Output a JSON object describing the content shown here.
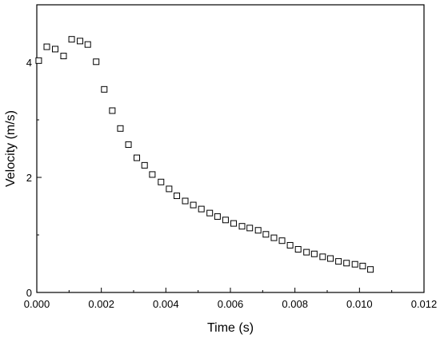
{
  "chart_data": {
    "type": "scatter",
    "title": "",
    "xlabel": "Time (s)",
    "ylabel": "Velocity (m/s)",
    "xlim": [
      0,
      0.012
    ],
    "ylim": [
      0,
      5
    ],
    "grid": false,
    "legend": "none",
    "marker": "open-square",
    "x_ticks": [
      0,
      0.002,
      0.004,
      0.006,
      0.008,
      0.01,
      0.012
    ],
    "x_tick_labels": [
      "0.000",
      "0.002",
      "0.004",
      "0.006",
      "0.008",
      "0.010",
      "0.012"
    ],
    "y_ticks": [
      0,
      2,
      4
    ],
    "y_tick_labels": [
      "0",
      "2",
      "4"
    ],
    "series": [
      {
        "x": [
          6e-05,
          0.00031,
          0.00057,
          0.00083,
          0.00108,
          0.00134,
          0.00158,
          0.00184,
          0.00209,
          0.00234,
          0.00259,
          0.00284,
          0.0031,
          0.00334,
          0.00358,
          0.00385,
          0.0041,
          0.00434,
          0.0046,
          0.00485,
          0.0051,
          0.00536,
          0.0056,
          0.00585,
          0.0061,
          0.00636,
          0.0066,
          0.00686,
          0.0071,
          0.00735,
          0.0076,
          0.00785,
          0.0081,
          0.00836,
          0.0086,
          0.00886,
          0.0091,
          0.00935,
          0.0096,
          0.00986,
          0.0101,
          0.01034
        ],
        "y": [
          4.03,
          4.27,
          4.23,
          4.11,
          4.4,
          4.37,
          4.31,
          4.01,
          3.53,
          3.16,
          2.85,
          2.57,
          2.34,
          2.21,
          2.05,
          1.92,
          1.8,
          1.68,
          1.59,
          1.52,
          1.45,
          1.38,
          1.32,
          1.26,
          1.2,
          1.15,
          1.12,
          1.08,
          1.01,
          0.95,
          0.9,
          0.82,
          0.75,
          0.7,
          0.67,
          0.62,
          0.59,
          0.54,
          0.51,
          0.49,
          0.46,
          0.4
        ]
      }
    ]
  },
  "colors": {
    "axis": "#000000",
    "marker_stroke": "#000000",
    "marker_fill": "#ffffff"
  }
}
